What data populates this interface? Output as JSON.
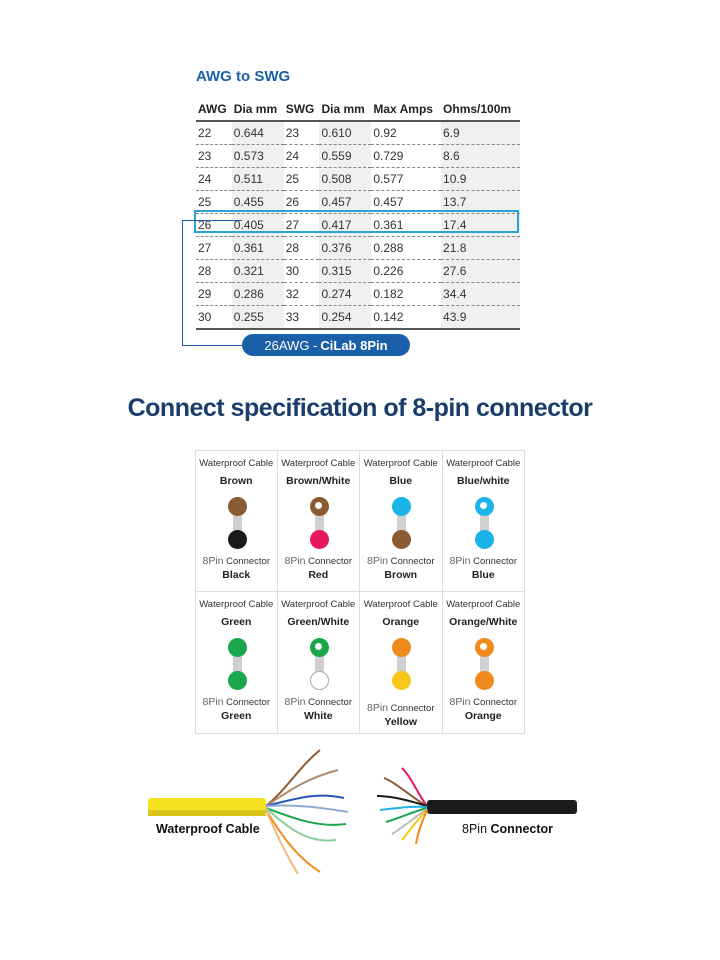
{
  "table": {
    "title": "AWG to SWG",
    "headers": [
      "AWG",
      "Dia mm",
      "SWG",
      "Dia mm",
      "Max Amps",
      "Ohms/100m"
    ],
    "rows": [
      [
        "22",
        "0.644",
        "23",
        "0.610",
        "0.92",
        "6.9"
      ],
      [
        "23",
        "0.573",
        "24",
        "0.559",
        "0.729",
        "8.6"
      ],
      [
        "24",
        "0.511",
        "25",
        "0.508",
        "0.577",
        "10.9"
      ],
      [
        "25",
        "0.455",
        "26",
        "0.457",
        "0.457",
        "13.7"
      ],
      [
        "26",
        "0.405",
        "27",
        "0.417",
        "0.361",
        "17.4"
      ],
      [
        "27",
        "0.361",
        "28",
        "0.376",
        "0.288",
        "21.8"
      ],
      [
        "28",
        "0.321",
        "30",
        "0.315",
        "0.226",
        "27.6"
      ],
      [
        "29",
        "0.286",
        "32",
        "0.274",
        "0.182",
        "34.4"
      ],
      [
        "30",
        "0.255",
        "33",
        "0.254",
        "0.142",
        "43.9"
      ]
    ],
    "highlight_awg": "26",
    "callout_prefix": "26AWG -",
    "callout_product": "CiLab 8Pin"
  },
  "heading": "Connect specification of 8-pin connector",
  "pin_map": {
    "top_label": "Waterproof  Cable",
    "bottom_label_prefix": "8Pin",
    "bottom_label_suffix": "Connector",
    "pairs": [
      {
        "cable": "Brown",
        "connector": "Black",
        "top_color": "#8a5a32",
        "bottom_color": "#1a1a1a",
        "top_stripe": false
      },
      {
        "cable": "Brown/White",
        "connector": "Red",
        "top_color": "#8a5a32",
        "bottom_color": "#e8175d",
        "top_stripe": true
      },
      {
        "cable": "Blue",
        "connector": "Brown",
        "top_color": "#1ab4e8",
        "bottom_color": "#8a5a32",
        "top_stripe": false
      },
      {
        "cable": "Blue/white",
        "connector": "Blue",
        "top_color": "#1ab4e8",
        "bottom_color": "#1ab4e8",
        "top_stripe": true
      },
      {
        "cable": "Green",
        "connector": "Green",
        "top_color": "#1aa64a",
        "bottom_color": "#1aa64a",
        "top_stripe": false
      },
      {
        "cable": "Green/White",
        "connector": "White",
        "top_color": "#1aa64a",
        "bottom_color": "#ffffff",
        "top_stripe": true
      },
      {
        "cable": "Orange",
        "connector": "Yellow",
        "top_color": "#f08a1c",
        "bottom_color": "#f7c81a",
        "top_stripe": false
      },
      {
        "cable": "Orange/White",
        "connector": "Orange",
        "top_color": "#f08a1c",
        "bottom_color": "#f08a1c",
        "top_stripe": true
      }
    ]
  },
  "photos": {
    "left_label": "Waterproof Cable",
    "right_label_prefix": "8Pin",
    "right_label_suffix": "Connector"
  },
  "colors": {
    "accent": "#1b5fa8",
    "highlight": "#29a3d8",
    "heading": "#1b3d6b",
    "cable_yellow": "#f5e11e"
  }
}
